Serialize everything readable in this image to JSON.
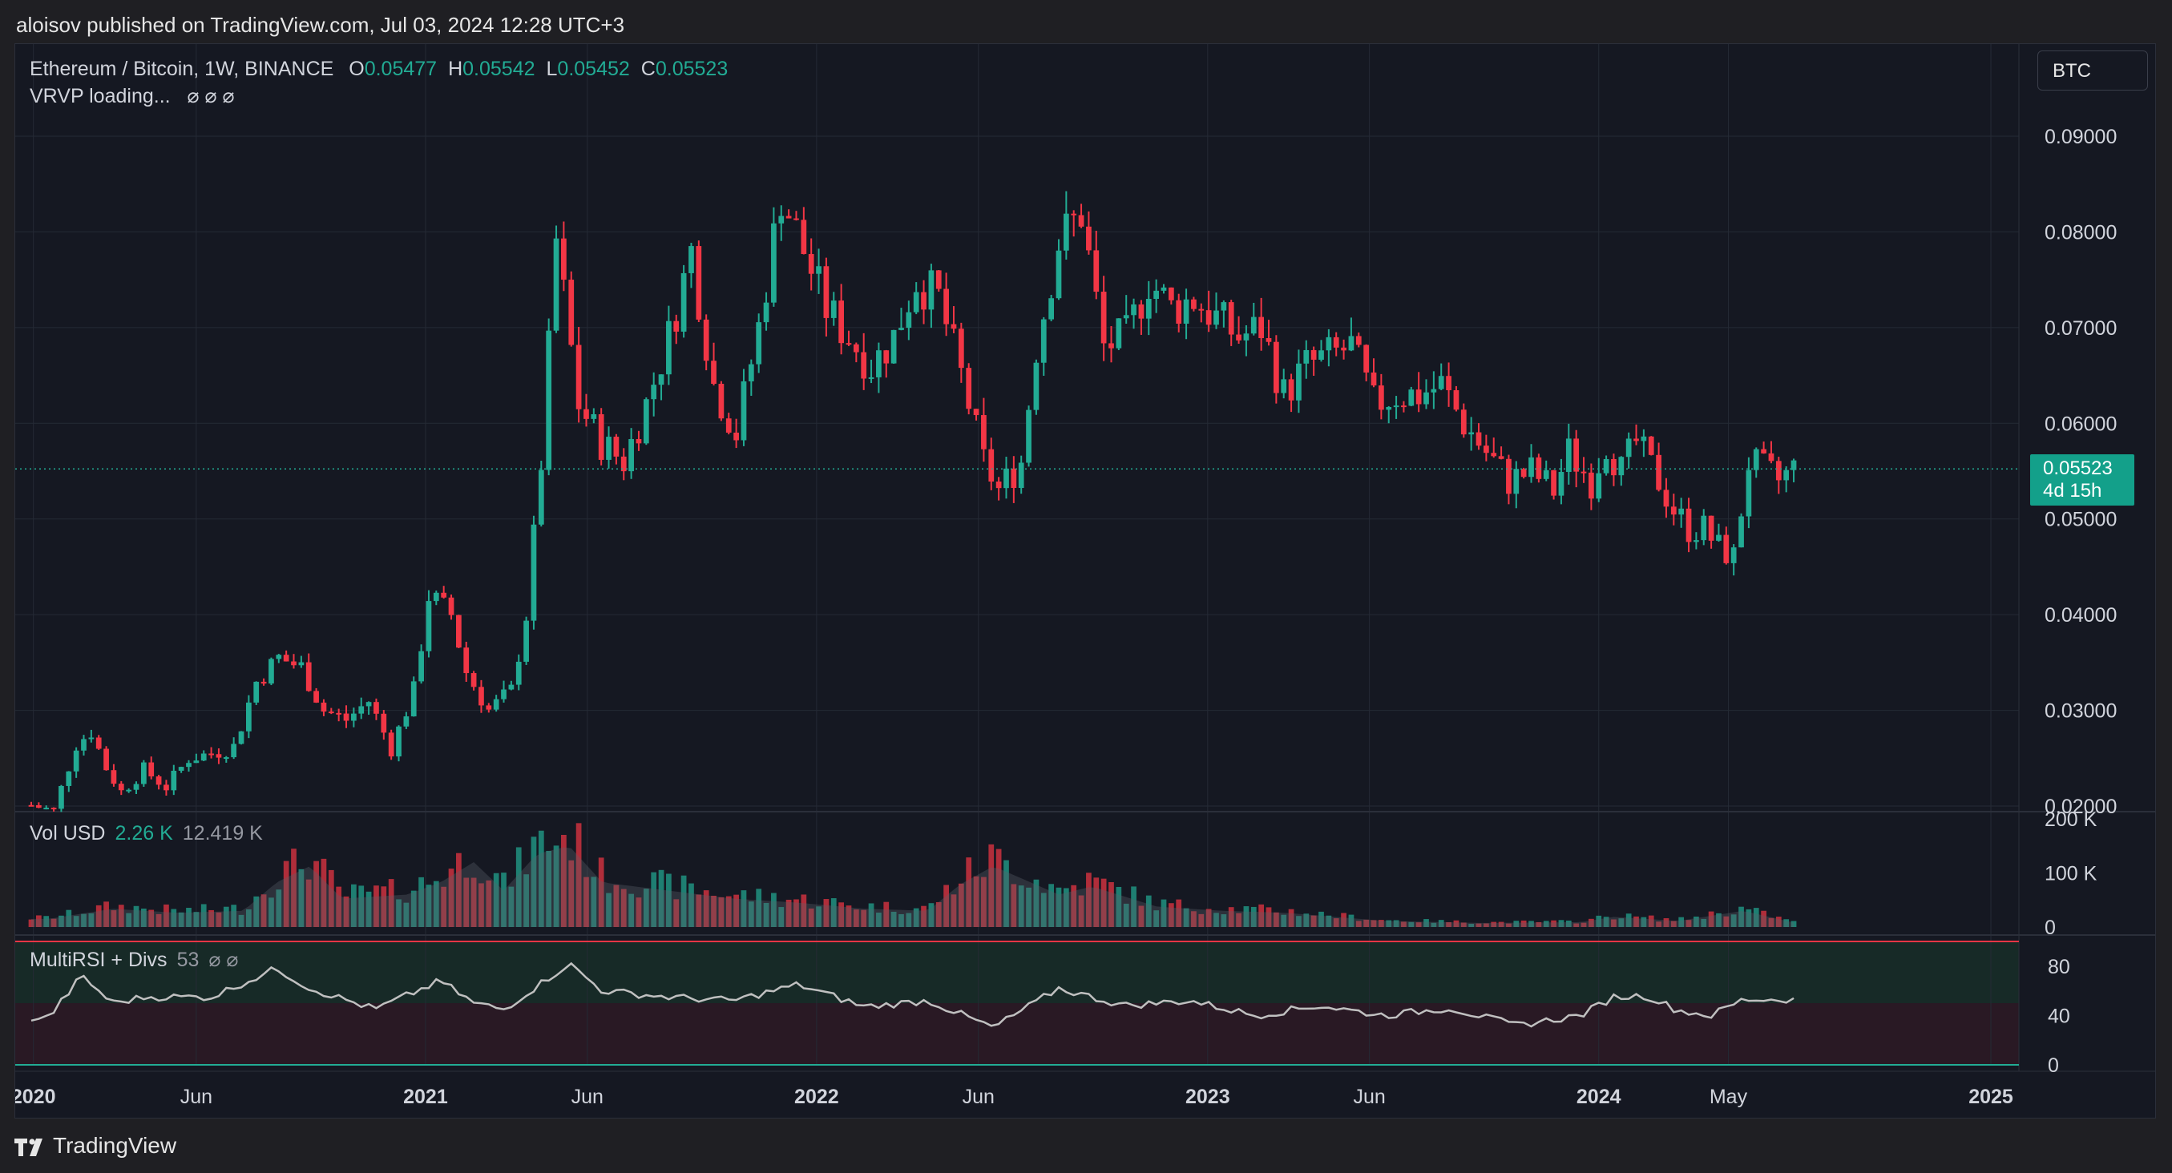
{
  "header": {
    "text": "aloisov published on TradingView.com, Jul 03, 2024 12:28 UTC+3"
  },
  "legend": {
    "title": "Ethereum / Bitcoin, 1W, BINANCE",
    "o_label": "O",
    "o_value": "0.05477",
    "h_label": "H",
    "h_value": "0.05542",
    "l_label": "L",
    "l_value": "0.05452",
    "c_label": "C",
    "c_value": "0.05523",
    "indicator": "VRVP loading...",
    "indicator_symbols": "⌀ ⌀ ⌀"
  },
  "currency_button": "BTC",
  "price_badge": {
    "price": "0.05523",
    "countdown": "4d 15h"
  },
  "volume_legend": {
    "label": "Vol USD",
    "value": "2.26 K",
    "ma_value": "12.419 K"
  },
  "rsi_legend": {
    "label": "MultiRSI + Divs",
    "value": "53",
    "symbols": "⌀ ⌀"
  },
  "footer": {
    "brand": "TradingView"
  },
  "colors": {
    "up": "#22ab94",
    "down": "#f23645",
    "background": "#151822",
    "grid": "#252a35",
    "rsi_line": "#c0c0c0",
    "volume_ma": "#5d606b"
  },
  "chart_data": [
    {
      "type": "candlestick",
      "title": "Ethereum / Bitcoin, 1W, BINANCE",
      "x_axis_labels": [
        "2020",
        "Jun",
        "2021",
        "Jun",
        "2022",
        "Jun",
        "2023",
        "Jun",
        "2024",
        "May",
        "2025"
      ],
      "y_axis_labels": [
        "0.09000",
        "0.08000",
        "0.07000",
        "0.06000",
        "0.05000",
        "0.04000",
        "0.03000",
        "0.02000"
      ],
      "ylim": [
        0.02,
        0.09
      ],
      "last_price": 0.05523,
      "grid": true,
      "series": [
        {
          "name": "ETHBTC",
          "close_path": [
            [
              "2019-12-30",
              0.0201
            ],
            [
              "2020-01-20",
              0.0195
            ],
            [
              "2020-02-10",
              0.0265
            ],
            [
              "2020-02-24",
              0.0278
            ],
            [
              "2020-03-09",
              0.024
            ],
            [
              "2020-03-23",
              0.0215
            ],
            [
              "2020-04-13",
              0.0238
            ],
            [
              "2020-05-04",
              0.022
            ],
            [
              "2020-05-25",
              0.025
            ],
            [
              "2020-06-15",
              0.0255
            ],
            [
              "2020-07-06",
              0.0262
            ],
            [
              "2020-07-27",
              0.033
            ],
            [
              "2020-08-17",
              0.0355
            ],
            [
              "2020-09-07",
              0.0345
            ],
            [
              "2020-09-28",
              0.03
            ],
            [
              "2020-10-19",
              0.029
            ],
            [
              "2020-11-09",
              0.031
            ],
            [
              "2020-11-30",
              0.026
            ],
            [
              "2020-12-21",
              0.032
            ],
            [
              "2021-01-04",
              0.042
            ],
            [
              "2021-01-25",
              0.04
            ],
            [
              "2021-02-08",
              0.034
            ],
            [
              "2021-03-01",
              0.03
            ],
            [
              "2021-03-22",
              0.032
            ],
            [
              "2021-04-05",
              0.04
            ],
            [
              "2021-04-19",
              0.056
            ],
            [
              "2021-05-03",
              0.079
            ],
            [
              "2021-05-24",
              0.062
            ],
            [
              "2021-06-14",
              0.058
            ],
            [
              "2021-07-05",
              0.056
            ],
            [
              "2021-07-26",
              0.062
            ],
            [
              "2021-08-16",
              0.069
            ],
            [
              "2021-09-06",
              0.078
            ],
            [
              "2021-09-27",
              0.064
            ],
            [
              "2021-10-18",
              0.059
            ],
            [
              "2021-11-08",
              0.07
            ],
            [
              "2021-11-29",
              0.084
            ],
            [
              "2021-12-20",
              0.078
            ],
            [
              "2022-01-10",
              0.072
            ],
            [
              "2022-01-31",
              0.069
            ],
            [
              "2022-02-21",
              0.066
            ],
            [
              "2022-03-14",
              0.069
            ],
            [
              "2022-04-04",
              0.075
            ],
            [
              "2022-04-25",
              0.073
            ],
            [
              "2022-05-16",
              0.065
            ],
            [
              "2022-06-06",
              0.056
            ],
            [
              "2022-06-20",
              0.053
            ],
            [
              "2022-07-11",
              0.056
            ],
            [
              "2022-07-25",
              0.068
            ],
            [
              "2022-08-15",
              0.079
            ],
            [
              "2022-09-05",
              0.082
            ],
            [
              "2022-09-26",
              0.068
            ],
            [
              "2022-10-17",
              0.069
            ],
            [
              "2022-11-07",
              0.075
            ],
            [
              "2022-11-28",
              0.072
            ],
            [
              "2022-12-19",
              0.073
            ],
            [
              "2023-01-09",
              0.071
            ],
            [
              "2023-01-30",
              0.069
            ],
            [
              "2023-02-20",
              0.07
            ],
            [
              "2023-03-13",
              0.063
            ],
            [
              "2023-04-03",
              0.066
            ],
            [
              "2023-04-24",
              0.067
            ],
            [
              "2023-05-15",
              0.068
            ],
            [
              "2023-06-05",
              0.062
            ],
            [
              "2023-06-26",
              0.063
            ],
            [
              "2023-07-17",
              0.063
            ],
            [
              "2023-08-07",
              0.064
            ],
            [
              "2023-08-28",
              0.06
            ],
            [
              "2023-09-18",
              0.057
            ],
            [
              "2023-10-09",
              0.054
            ],
            [
              "2023-10-30",
              0.055
            ],
            [
              "2023-11-20",
              0.053
            ],
            [
              "2023-12-04",
              0.057
            ],
            [
              "2023-12-25",
              0.054
            ],
            [
              "2024-01-08",
              0.058
            ],
            [
              "2024-01-22",
              0.055
            ],
            [
              "2024-02-05",
              0.058
            ],
            [
              "2024-02-26",
              0.054
            ],
            [
              "2024-03-11",
              0.051
            ],
            [
              "2024-03-25",
              0.049
            ],
            [
              "2024-04-08",
              0.049
            ],
            [
              "2024-04-22",
              0.047
            ],
            [
              "2024-05-06",
              0.046
            ],
            [
              "2024-05-20",
              0.056
            ],
            [
              "2024-06-03",
              0.055
            ],
            [
              "2024-06-17",
              0.054
            ],
            [
              "2024-07-01",
              0.05523
            ]
          ]
        }
      ]
    },
    {
      "type": "bar",
      "title": "Vol USD",
      "y_axis_labels": [
        "200 K",
        "100 K",
        "0"
      ],
      "ylim": [
        0,
        200000
      ],
      "last_value": 2260,
      "ma_value": 12419,
      "series": [
        {
          "name": "Vol USD",
          "values_by_period": [
            [
              "2020-01",
              20000
            ],
            [
              "2020-03",
              45000
            ],
            [
              "2020-05",
              35000
            ],
            [
              "2020-07",
              40000
            ],
            [
              "2020-08",
              110000
            ],
            [
              "2020-09",
              150000
            ],
            [
              "2020-10",
              70000
            ],
            [
              "2020-12",
              80000
            ],
            [
              "2021-01",
              110000
            ],
            [
              "2021-02",
              160000
            ],
            [
              "2021-03",
              90000
            ],
            [
              "2021-04",
              180000
            ],
            [
              "2021-05",
              200000
            ],
            [
              "2021-06",
              110000
            ],
            [
              "2021-08",
              90000
            ],
            [
              "2021-10",
              70000
            ],
            [
              "2021-12",
              60000
            ],
            [
              "2022-02",
              45000
            ],
            [
              "2022-04",
              40000
            ],
            [
              "2022-05",
              105000
            ],
            [
              "2022-06",
              150000
            ],
            [
              "2022-08",
              80000
            ],
            [
              "2022-09",
              100000
            ],
            [
              "2022-11",
              50000
            ],
            [
              "2023-01",
              40000
            ],
            [
              "2023-03",
              35000
            ],
            [
              "2023-06",
              15000
            ],
            [
              "2023-09",
              10000
            ],
            [
              "2023-12",
              12000
            ],
            [
              "2024-01",
              25000
            ],
            [
              "2024-03",
              15000
            ],
            [
              "2024-05",
              40000
            ],
            [
              "2024-07",
              2260
            ]
          ]
        }
      ]
    },
    {
      "type": "line",
      "title": "MultiRSI + Divs",
      "y_axis_labels": [
        "80",
        "40",
        "0"
      ],
      "ylim": [
        0,
        100
      ],
      "last_value": 53,
      "series": [
        {
          "name": "RSI",
          "values_by_period": [
            [
              "2020-01",
              38
            ],
            [
              "2020-02",
              72
            ],
            [
              "2020-03",
              50
            ],
            [
              "2020-04",
              55
            ],
            [
              "2020-06",
              55
            ],
            [
              "2020-08",
              78
            ],
            [
              "2020-09",
              62
            ],
            [
              "2020-11",
              45
            ],
            [
              "2021-01",
              68
            ],
            [
              "2021-02",
              50
            ],
            [
              "2021-03",
              45
            ],
            [
              "2021-05",
              82
            ],
            [
              "2021-06",
              60
            ],
            [
              "2021-08",
              55
            ],
            [
              "2021-10",
              52
            ],
            [
              "2021-12",
              65
            ],
            [
              "2022-02",
              47
            ],
            [
              "2022-04",
              52
            ],
            [
              "2022-06",
              30
            ],
            [
              "2022-08",
              62
            ],
            [
              "2022-10",
              48
            ],
            [
              "2022-12",
              52
            ],
            [
              "2023-02",
              40
            ],
            [
              "2023-04",
              48
            ],
            [
              "2023-06",
              40
            ],
            [
              "2023-08",
              46
            ],
            [
              "2023-10",
              32
            ],
            [
              "2023-12",
              40
            ],
            [
              "2024-01",
              55
            ],
            [
              "2024-02",
              56
            ],
            [
              "2024-03",
              44
            ],
            [
              "2024-04",
              40
            ],
            [
              "2024-05",
              53
            ],
            [
              "2024-07",
              53
            ]
          ]
        }
      ]
    }
  ]
}
